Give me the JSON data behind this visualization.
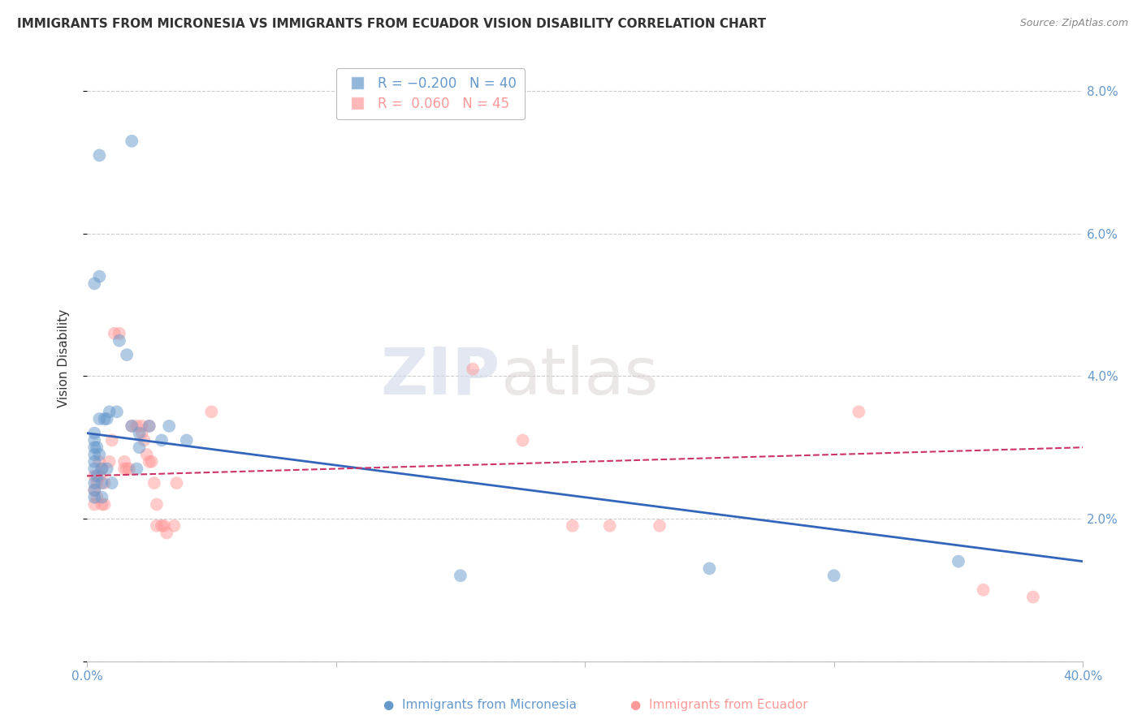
{
  "title": "IMMIGRANTS FROM MICRONESIA VS IMMIGRANTS FROM ECUADOR VISION DISABILITY CORRELATION CHART",
  "source": "Source: ZipAtlas.com",
  "ylabel": "Vision Disability",
  "right_yticks": [
    0.0,
    0.02,
    0.04,
    0.06,
    0.08
  ],
  "right_yticklabels": [
    "",
    "2.0%",
    "4.0%",
    "6.0%",
    "8.0%"
  ],
  "xlim": [
    0.0,
    0.4
  ],
  "ylim": [
    0.0,
    0.085
  ],
  "micronesia_color": "#6699cc",
  "ecuador_color": "#ff9999",
  "micronesia_scatter": [
    [
      0.005,
      0.071
    ],
    [
      0.018,
      0.073
    ],
    [
      0.003,
      0.053
    ],
    [
      0.005,
      0.054
    ],
    [
      0.005,
      0.034
    ],
    [
      0.007,
      0.034
    ],
    [
      0.008,
      0.034
    ],
    [
      0.003,
      0.032
    ],
    [
      0.003,
      0.031
    ],
    [
      0.003,
      0.03
    ],
    [
      0.004,
      0.03
    ],
    [
      0.003,
      0.029
    ],
    [
      0.005,
      0.029
    ],
    [
      0.003,
      0.028
    ],
    [
      0.003,
      0.027
    ],
    [
      0.006,
      0.027
    ],
    [
      0.008,
      0.027
    ],
    [
      0.004,
      0.026
    ],
    [
      0.003,
      0.025
    ],
    [
      0.006,
      0.025
    ],
    [
      0.01,
      0.025
    ],
    [
      0.003,
      0.024
    ],
    [
      0.003,
      0.023
    ],
    [
      0.006,
      0.023
    ],
    [
      0.009,
      0.035
    ],
    [
      0.012,
      0.035
    ],
    [
      0.013,
      0.045
    ],
    [
      0.016,
      0.043
    ],
    [
      0.018,
      0.033
    ],
    [
      0.021,
      0.032
    ],
    [
      0.021,
      0.03
    ],
    [
      0.02,
      0.027
    ],
    [
      0.025,
      0.033
    ],
    [
      0.033,
      0.033
    ],
    [
      0.03,
      0.031
    ],
    [
      0.04,
      0.031
    ],
    [
      0.25,
      0.013
    ],
    [
      0.3,
      0.012
    ],
    [
      0.15,
      0.012
    ],
    [
      0.35,
      0.014
    ]
  ],
  "ecuador_scatter": [
    [
      0.003,
      0.026
    ],
    [
      0.004,
      0.025
    ],
    [
      0.005,
      0.028
    ],
    [
      0.006,
      0.027
    ],
    [
      0.005,
      0.026
    ],
    [
      0.007,
      0.025
    ],
    [
      0.003,
      0.024
    ],
    [
      0.004,
      0.023
    ],
    [
      0.003,
      0.022
    ],
    [
      0.006,
      0.022
    ],
    [
      0.007,
      0.022
    ],
    [
      0.009,
      0.028
    ],
    [
      0.01,
      0.031
    ],
    [
      0.011,
      0.046
    ],
    [
      0.013,
      0.046
    ],
    [
      0.015,
      0.028
    ],
    [
      0.015,
      0.027
    ],
    [
      0.016,
      0.027
    ],
    [
      0.017,
      0.027
    ],
    [
      0.018,
      0.033
    ],
    [
      0.02,
      0.033
    ],
    [
      0.022,
      0.033
    ],
    [
      0.022,
      0.032
    ],
    [
      0.023,
      0.031
    ],
    [
      0.024,
      0.029
    ],
    [
      0.025,
      0.033
    ],
    [
      0.025,
      0.028
    ],
    [
      0.026,
      0.028
    ],
    [
      0.027,
      0.025
    ],
    [
      0.028,
      0.022
    ],
    [
      0.028,
      0.019
    ],
    [
      0.03,
      0.019
    ],
    [
      0.031,
      0.019
    ],
    [
      0.032,
      0.018
    ],
    [
      0.035,
      0.019
    ],
    [
      0.036,
      0.025
    ],
    [
      0.155,
      0.041
    ],
    [
      0.175,
      0.031
    ],
    [
      0.195,
      0.019
    ],
    [
      0.21,
      0.019
    ],
    [
      0.23,
      0.019
    ],
    [
      0.31,
      0.035
    ],
    [
      0.36,
      0.01
    ],
    [
      0.38,
      0.009
    ],
    [
      0.05,
      0.035
    ]
  ],
  "micronesia_line": {
    "x0": 0.0,
    "y0": 0.032,
    "x1": 0.4,
    "y1": 0.014
  },
  "ecuador_line": {
    "x0": 0.0,
    "y0": 0.026,
    "x1": 0.4,
    "y1": 0.03
  },
  "watermark_zip": "ZIP",
  "watermark_atlas": "atlas",
  "background_color": "#ffffff",
  "grid_color": "#cccccc",
  "title_fontsize": 11,
  "axis_label_color": "#6699cc"
}
